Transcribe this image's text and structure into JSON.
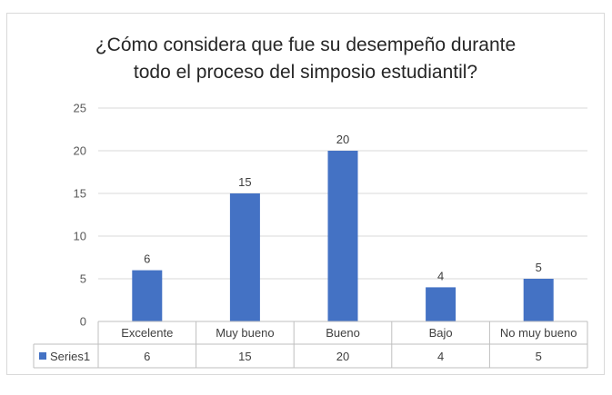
{
  "chart_data": {
    "type": "bar",
    "title_lines": [
      "¿Cómo considera que fue su desempeño durante",
      "todo el proceso del simposio estudiantil?"
    ],
    "categories": [
      "Excelente",
      "Muy bueno",
      "Bueno",
      "Bajo",
      "No muy bueno"
    ],
    "series": [
      {
        "name": "Series1",
        "values": [
          6,
          15,
          20,
          4,
          5
        ]
      }
    ],
    "ylim": [
      0,
      25
    ],
    "yticks": [
      0,
      5,
      10,
      15,
      20,
      25
    ],
    "grid": true,
    "data_labels": true,
    "data_table": true,
    "legend": "data-table",
    "colors": {
      "bar": "#4472C4",
      "grid": "#D9D9D9",
      "border": "#BFBFBF"
    }
  }
}
